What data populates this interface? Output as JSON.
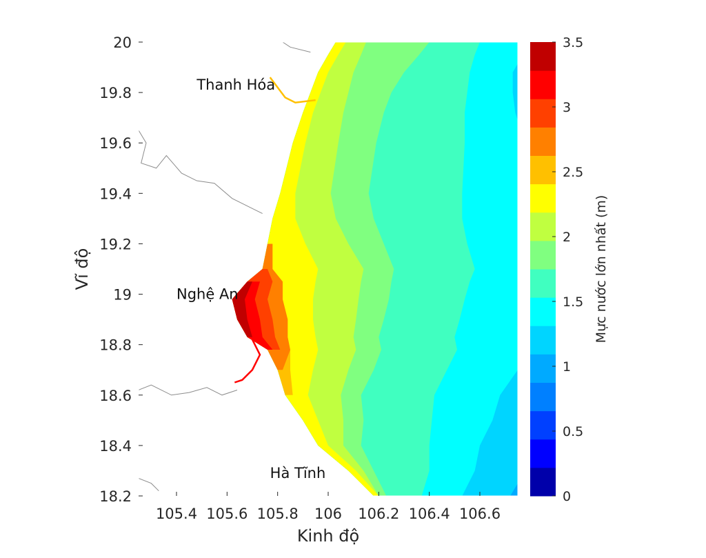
{
  "chart_data": {
    "type": "heatmap",
    "title": "",
    "xlabel": "Kinh độ",
    "ylabel": "Vĩ độ",
    "xlim": [
      105.25,
      106.75
    ],
    "ylim": [
      18.2,
      20.0
    ],
    "xticks": [
      105.4,
      105.6,
      105.8,
      106.0,
      106.2,
      106.4,
      106.6
    ],
    "xtick_labels": [
      "105.4",
      "105.6",
      "105.8",
      "106",
      "106.2",
      "106.4",
      "106.6"
    ],
    "yticks": [
      18.2,
      18.4,
      18.6,
      18.8,
      19.0,
      19.2,
      19.4,
      19.6,
      19.8,
      20.0
    ],
    "ytick_labels": [
      "18.2",
      "18.4",
      "18.6",
      "18.8",
      "19",
      "19.2",
      "19.4",
      "19.6",
      "19.8",
      "20"
    ],
    "colorbar": {
      "label": "Mực nước lớn nhất (m)",
      "range": [
        0,
        3.5
      ],
      "ticks": [
        0,
        0.5,
        1,
        1.5,
        2,
        2.5,
        3,
        3.5
      ],
      "tick_labels": [
        "0",
        "0.5",
        "1",
        "1.5",
        "2",
        "2.5",
        "3",
        "3.5"
      ],
      "levels": [
        {
          "from": 0.0,
          "to": 0.2188,
          "color": "#0000aa"
        },
        {
          "from": 0.2188,
          "to": 0.4375,
          "color": "#0000ff"
        },
        {
          "from": 0.4375,
          "to": 0.6563,
          "color": "#0040ff"
        },
        {
          "from": 0.6563,
          "to": 0.875,
          "color": "#0080ff"
        },
        {
          "from": 0.875,
          "to": 1.0938,
          "color": "#00aaff"
        },
        {
          "from": 1.0938,
          "to": 1.3125,
          "color": "#00d5ff"
        },
        {
          "from": 1.3125,
          "to": 1.5313,
          "color": "#00ffff"
        },
        {
          "from": 1.5313,
          "to": 1.75,
          "color": "#40ffc0"
        },
        {
          "from": 1.75,
          "to": 1.9688,
          "color": "#80ff80"
        },
        {
          "from": 1.9688,
          "to": 2.1875,
          "color": "#c0ff40"
        },
        {
          "from": 2.1875,
          "to": 2.4063,
          "color": "#ffff00"
        },
        {
          "from": 2.4063,
          "to": 2.625,
          "color": "#ffc000"
        },
        {
          "from": 2.625,
          "to": 2.8438,
          "color": "#ff8000"
        },
        {
          "from": 2.8438,
          "to": 3.0625,
          "color": "#ff4000"
        },
        {
          "from": 3.0625,
          "to": 3.2813,
          "color": "#ff0000"
        },
        {
          "from": 3.2813,
          "to": 3.5,
          "color": "#c00000"
        }
      ]
    },
    "regions": [
      {
        "label": "Thanh Hóa",
        "lon": 105.48,
        "lat": 19.83
      },
      {
        "label": "Nghệ An",
        "lon": 105.4,
        "lat": 19.0
      },
      {
        "label": "Hà Tĩnh",
        "lon": 105.77,
        "lat": 18.29
      }
    ],
    "max_water_level_field": {
      "peak_value_m": 3.4,
      "peak_location": {
        "lon": 105.65,
        "lat": 18.95
      },
      "coastline_lon": [
        [
          20.0,
          106.05
        ],
        [
          19.95,
          106.02
        ],
        [
          19.88,
          105.98
        ],
        [
          19.8,
          105.95
        ],
        [
          19.72,
          105.92
        ],
        [
          19.6,
          105.88
        ],
        [
          19.4,
          105.83
        ],
        [
          19.3,
          105.8
        ],
        [
          19.2,
          105.78
        ],
        [
          19.1,
          105.76
        ],
        [
          19.05,
          105.7
        ],
        [
          18.98,
          105.64
        ],
        [
          18.9,
          105.66
        ],
        [
          18.83,
          105.7
        ],
        [
          18.78,
          105.78
        ],
        [
          18.7,
          105.82
        ],
        [
          18.6,
          105.85
        ],
        [
          18.5,
          105.92
        ],
        [
          18.4,
          105.98
        ],
        [
          18.3,
          106.1
        ],
        [
          18.2,
          106.2
        ]
      ],
      "contour_offsets_lon": [
        {
          "level": 2.1875,
          "offset": [
            0.02,
            0.02,
            0.02,
            0.02,
            0.02,
            0.03,
            0.04,
            0.07,
            0.13,
            0.2,
            0.25,
            0.3,
            0.28,
            0.25,
            0.18,
            0.12,
            0.07,
            0.04,
            0.02,
            0.01,
            0.0
          ]
        },
        {
          "level": 1.9688,
          "offset": [
            0.1,
            0.11,
            0.12,
            0.13,
            0.14,
            0.16,
            0.18,
            0.23,
            0.3,
            0.38,
            0.43,
            0.48,
            0.45,
            0.4,
            0.33,
            0.26,
            0.2,
            0.14,
            0.08,
            0.04,
            0.0
          ]
        },
        {
          "level": 1.75,
          "offset": [
            0.35,
            0.34,
            0.32,
            0.3,
            0.3,
            0.31,
            0.33,
            0.38,
            0.44,
            0.5,
            0.55,
            0.6,
            0.56,
            0.5,
            0.43,
            0.36,
            0.28,
            0.22,
            0.15,
            0.08,
            0.03
          ]
        },
        {
          "level": 1.5313,
          "offset": [
            0.55,
            0.56,
            0.58,
            0.6,
            0.62,
            0.66,
            0.7,
            0.73,
            0.77,
            0.82,
            0.86,
            0.9,
            0.86,
            0.8,
            0.73,
            0.65,
            0.57,
            0.49,
            0.42,
            0.3,
            0.17
          ]
        },
        {
          "level": 1.3125,
          "offset": [
            0.75,
            0.75,
            0.75,
            0.78,
            0.82,
            0.9,
            1.0,
            1.05,
            1.1,
            1.15,
            1.18,
            1.22,
            1.18,
            1.1,
            1.02,
            0.93,
            0.83,
            0.73,
            0.62,
            0.48,
            0.33
          ]
        },
        {
          "level": 1.0938,
          "offset": [
            1.5,
            1.5,
            1.5,
            1.5,
            1.5,
            1.5,
            1.5,
            1.5,
            1.5,
            1.5,
            1.5,
            1.5,
            1.4,
            1.32,
            1.23,
            1.13,
            1.03,
            0.93,
            0.82,
            0.68,
            0.52
          ]
        },
        {
          "level": 0.875,
          "offset": [
            1.5,
            1.5,
            1.5,
            1.5,
            1.5,
            1.5,
            1.5,
            1.5,
            1.5,
            1.5,
            1.5,
            1.5,
            1.5,
            1.5,
            1.5,
            1.5,
            1.5,
            1.5,
            1.15,
            0.98,
            0.83
          ]
        },
        {
          "level": 2.4063,
          "offset": [
            -1,
            -1,
            -1,
            -1,
            -1,
            -1,
            -1,
            -1,
            -1,
            -1,
            0.0,
            0.02,
            0.04,
            0.06,
            0.07,
            0.03,
            0.01,
            -1,
            -1,
            -1,
            -1
          ]
        },
        {
          "level": 2.625,
          "offset": [
            -1,
            -1,
            -1,
            -1,
            -1,
            -1,
            -1,
            -1,
            0.0,
            0.02,
            0.12,
            0.18,
            0.18,
            0.14,
            0.07,
            0.0,
            -1,
            -1,
            -1,
            -1,
            -1
          ]
        },
        {
          "level": 2.8438,
          "offset": [
            -1,
            -1,
            -1,
            -1,
            -1,
            -1,
            -1,
            -1,
            -1,
            0.0,
            0.08,
            0.12,
            0.12,
            0.09,
            0.03,
            -1,
            -1,
            -1,
            -1,
            -1,
            -1
          ]
        },
        {
          "level": 3.0625,
          "offset": [
            -1,
            -1,
            -1,
            -1,
            -1,
            -1,
            -1,
            -1,
            -1,
            -1,
            0.03,
            0.07,
            0.07,
            0.04,
            0.0,
            -1,
            -1,
            -1,
            -1,
            -1,
            -1
          ]
        },
        {
          "level": 3.2813,
          "offset": [
            -1,
            -1,
            -1,
            -1,
            -1,
            -1,
            -1,
            -1,
            -1,
            -1,
            0.0,
            0.03,
            0.02,
            0.0,
            -1,
            -1,
            -1,
            -1,
            -1,
            -1,
            -1
          ]
        }
      ]
    }
  }
}
